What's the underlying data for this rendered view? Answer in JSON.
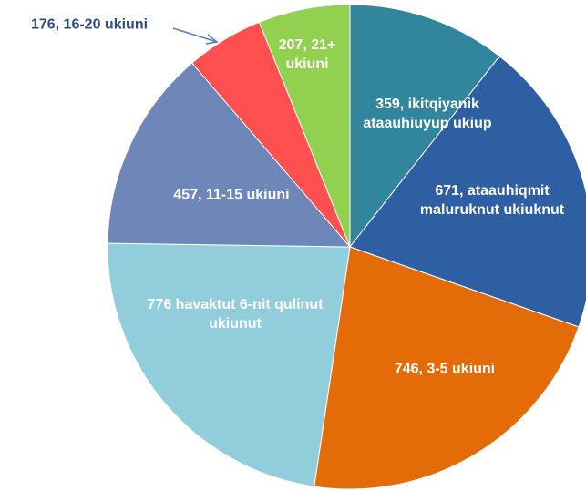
{
  "chart_data": {
    "type": "pie",
    "values": [
      359,
      671,
      746,
      776,
      457,
      176,
      207
    ],
    "value_labels": [
      "359, ikitqiyanik ataauhiuyup ukiup",
      "671, ataauhiqmit maluruknut ukiuknut",
      "746, 3-5 ukiuni",
      "776 havaktut 6-nit qulinut ukiunut",
      "457, 11-15 ukiuni",
      "176, 16-20 ukiuni",
      "207, 21+ ukiuni"
    ],
    "colors": [
      "#31859c",
      "#2e5fa3",
      "#e36c09",
      "#92cddc",
      "#6f86b8",
      "#ff5050",
      "#92d050"
    ]
  }
}
